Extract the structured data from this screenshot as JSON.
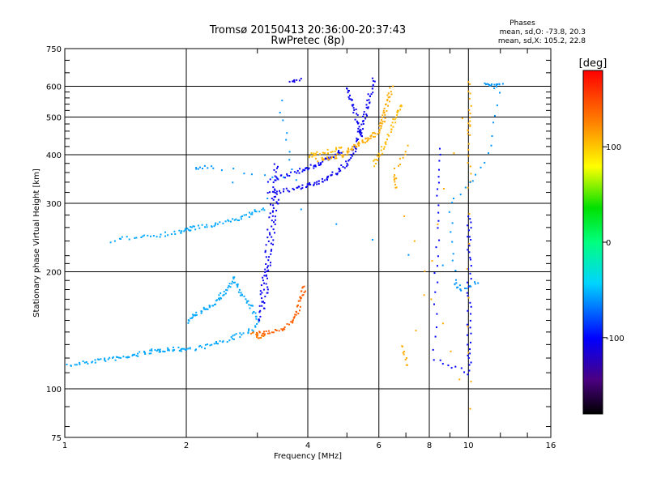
{
  "chart_data": {
    "type": "scatter",
    "title": "Tromsø 20150413 20:36:00-20:37:43",
    "subtitle": "RwPretec (8p)",
    "legend_text": {
      "heading": "Phases",
      "line1": "mean, sd,O: -73.8, 20.3",
      "line2": "mean, sd,X: 105.2, 22.8"
    },
    "xlabel": "Frequency [MHz]",
    "ylabel": "Stationary phase Virtual Height [km]",
    "xscale": "log",
    "yscale": "log",
    "xlim": [
      1,
      16
    ],
    "ylim": [
      75,
      750
    ],
    "xticks": [
      1,
      2,
      4,
      6,
      8,
      10,
      16
    ],
    "yticks": [
      75,
      100,
      200,
      300,
      400,
      500,
      600,
      750
    ],
    "grid": true,
    "colorbar": {
      "label": "[deg]",
      "range": [
        -180,
        180
      ],
      "ticks": [
        100,
        0,
        -100
      ],
      "tick_labels": [
        "100",
        "0",
        "-100"
      ]
    },
    "traces": [
      {
        "phase": -55,
        "points": [
          [
            1.0,
            115
          ],
          [
            1.1,
            117
          ],
          [
            1.2,
            119
          ],
          [
            1.3,
            120
          ],
          [
            1.4,
            121
          ],
          [
            1.5,
            123
          ],
          [
            1.6,
            125
          ],
          [
            1.7,
            126
          ],
          [
            1.8,
            127
          ],
          [
            1.9,
            127
          ],
          [
            2.0,
            127
          ],
          [
            2.2,
            129
          ],
          [
            2.4,
            132
          ],
          [
            2.6,
            136
          ],
          [
            2.8,
            140
          ],
          [
            3.0,
            146
          ]
        ]
      },
      {
        "phase": -55,
        "points": [
          [
            1.3,
            240
          ],
          [
            1.5,
            248
          ],
          [
            1.7,
            250
          ],
          [
            1.9,
            254
          ],
          [
            2.0,
            258
          ],
          [
            2.1,
            261
          ],
          [
            2.3,
            264
          ],
          [
            2.5,
            270
          ],
          [
            2.7,
            276
          ],
          [
            2.9,
            283
          ],
          [
            3.1,
            293
          ]
        ]
      },
      {
        "phase": -55,
        "points": [
          [
            2.0,
            150
          ],
          [
            2.1,
            155
          ],
          [
            2.2,
            160
          ],
          [
            2.3,
            165
          ],
          [
            2.4,
            172
          ],
          [
            2.5,
            180
          ],
          [
            2.6,
            190
          ]
        ]
      },
      {
        "phase": -55,
        "points": [
          [
            2.6,
            195
          ],
          [
            2.7,
            180
          ],
          [
            2.8,
            170
          ],
          [
            2.9,
            160
          ],
          [
            3.0,
            150
          ]
        ]
      },
      {
        "phase": -105,
        "points": [
          [
            3.0,
            150
          ],
          [
            3.05,
            170
          ],
          [
            3.1,
            190
          ],
          [
            3.15,
            220
          ],
          [
            3.2,
            260
          ],
          [
            3.25,
            300
          ],
          [
            3.3,
            340
          ],
          [
            3.32,
            380
          ]
        ]
      },
      {
        "phase": -105,
        "points": [
          [
            3.1,
            160
          ],
          [
            3.15,
            185
          ],
          [
            3.2,
            210
          ],
          [
            3.25,
            245
          ],
          [
            3.3,
            285
          ],
          [
            3.35,
            320
          ]
        ]
      },
      {
        "phase": -105,
        "points": [
          [
            3.2,
            320
          ],
          [
            3.5,
            325
          ],
          [
            3.8,
            330
          ],
          [
            4.0,
            335
          ],
          [
            4.2,
            340
          ],
          [
            4.4,
            348
          ],
          [
            4.6,
            357
          ],
          [
            4.8,
            367
          ],
          [
            5.0,
            385
          ],
          [
            5.2,
            410
          ],
          [
            5.3,
            440
          ],
          [
            5.4,
            470
          ],
          [
            5.5,
            500
          ],
          [
            5.6,
            540
          ],
          [
            5.7,
            580
          ],
          [
            5.8,
            630
          ]
        ]
      },
      {
        "phase": -100,
        "points": [
          [
            3.2,
            345
          ],
          [
            3.5,
            355
          ],
          [
            3.8,
            365
          ],
          [
            4.0,
            372
          ],
          [
            4.2,
            380
          ],
          [
            4.4,
            388
          ],
          [
            4.6,
            398
          ],
          [
            4.8,
            410
          ]
        ]
      },
      {
        "phase": -110,
        "points": [
          [
            3.6,
            620
          ],
          [
            3.8,
            625
          ]
        ]
      },
      {
        "phase": -105,
        "points": [
          [
            5.0,
            600
          ],
          [
            5.1,
            560
          ],
          [
            5.2,
            520
          ],
          [
            5.3,
            480
          ],
          [
            5.4,
            450
          ]
        ]
      },
      {
        "phase": 140,
        "points": [
          [
            3.0,
            140
          ],
          [
            3.2,
            140
          ],
          [
            3.4,
            142
          ],
          [
            3.6,
            148
          ],
          [
            3.7,
            155
          ],
          [
            3.8,
            165
          ],
          [
            3.85,
            175
          ],
          [
            3.9,
            185
          ]
        ]
      },
      {
        "phase": 130,
        "points": [
          [
            2.9,
            140
          ],
          [
            3.0,
            137
          ],
          [
            3.1,
            137
          ]
        ]
      },
      {
        "phase": 110,
        "points": [
          [
            4.2,
            390
          ],
          [
            4.5,
            395
          ],
          [
            4.8,
            400
          ],
          [
            5.0,
            410
          ],
          [
            5.2,
            420
          ],
          [
            5.4,
            430
          ],
          [
            5.6,
            440
          ],
          [
            5.8,
            450
          ],
          [
            6.0,
            470
          ],
          [
            6.1,
            490
          ],
          [
            6.2,
            520
          ],
          [
            6.3,
            560
          ],
          [
            6.4,
            600
          ]
        ]
      },
      {
        "phase": 105,
        "points": [
          [
            5.8,
            380
          ],
          [
            6.0,
            400
          ],
          [
            6.2,
            430
          ],
          [
            6.4,
            470
          ],
          [
            6.6,
            510
          ],
          [
            6.8,
            540
          ]
        ]
      },
      {
        "phase": 105,
        "points": [
          [
            4.0,
            400
          ],
          [
            4.2,
            405
          ],
          [
            4.5,
            410
          ],
          [
            4.8,
            420
          ]
        ]
      },
      {
        "phase": -100,
        "points": [
          [
            10.0,
            280
          ],
          [
            10.0,
            240
          ],
          [
            10.0,
            200
          ],
          [
            10.0,
            160
          ],
          [
            10.0,
            130
          ],
          [
            10.0,
            110
          ],
          [
            8.2,
            120
          ],
          [
            8.3,
            200
          ],
          [
            8.4,
            300
          ],
          [
            8.5,
            420
          ]
        ]
      },
      {
        "phase": 110,
        "points": [
          [
            6.8,
            130
          ],
          [
            7.0,
            115
          ],
          [
            10.0,
            620
          ],
          [
            10.0,
            500
          ],
          [
            10.0,
            450
          ],
          [
            10.0,
            330
          ],
          [
            10.0,
            90
          ],
          [
            6.6,
            330
          ],
          [
            6.5,
            360
          ],
          [
            7.0,
            420
          ]
        ]
      },
      {
        "phase": -60,
        "points": [
          [
            11.0,
            610
          ],
          [
            11.5,
            600
          ],
          [
            12.0,
            610
          ],
          [
            11.0,
            380
          ],
          [
            9.0,
            300
          ],
          [
            9.2,
            190
          ],
          [
            9.5,
            180
          ],
          [
            10.5,
            190
          ],
          [
            2.1,
            370
          ],
          [
            2.3,
            375
          ],
          [
            3.7,
            345
          ],
          [
            3.4,
            550
          ]
        ]
      }
    ]
  }
}
